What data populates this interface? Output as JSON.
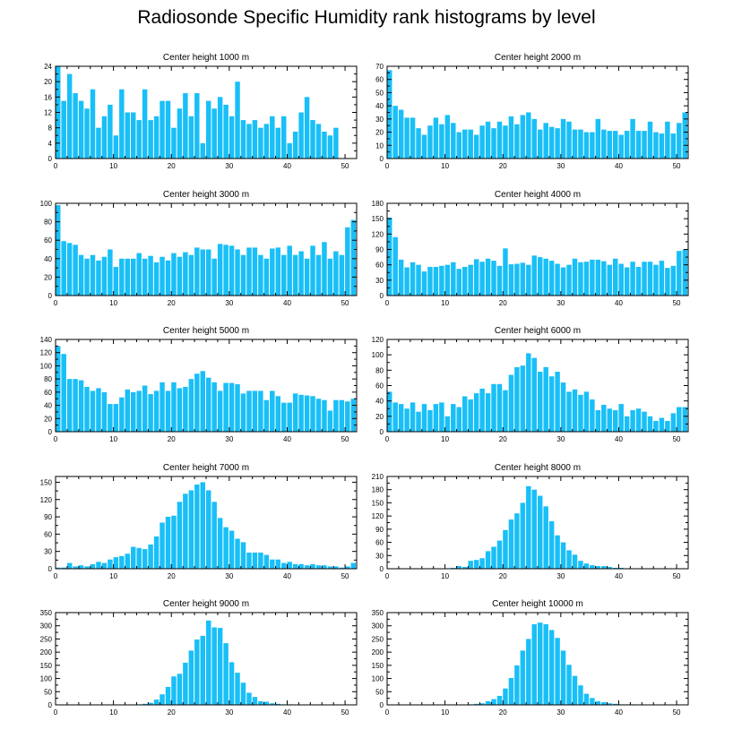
{
  "page_title": "Radiosonde Specific Humidity rank histograms by level",
  "colors": {
    "bar": "#19bff7",
    "bar_edge": "#ffffff",
    "axis": "#000000"
  },
  "chart_data": [
    {
      "type": "bar",
      "title": "Center height 1000 m",
      "x": [
        0,
        1,
        2,
        3,
        4,
        5,
        6,
        7,
        8,
        9,
        10,
        11,
        12,
        13,
        14,
        15,
        16,
        17,
        18,
        19,
        20,
        21,
        22,
        23,
        24,
        25,
        26,
        27,
        28,
        29,
        30,
        31,
        32,
        33,
        34,
        35,
        36,
        37,
        38,
        39,
        40,
        41,
        42,
        43,
        44,
        45,
        46,
        47,
        48,
        49,
        50,
        51
      ],
      "values": [
        24,
        15,
        22,
        17,
        15,
        13,
        18,
        8,
        11,
        14,
        6,
        18,
        12,
        12,
        10,
        18,
        10,
        11,
        15,
        15,
        8,
        13,
        17,
        11,
        17,
        4,
        15,
        13,
        16,
        14,
        11,
        20,
        10,
        9,
        10,
        8,
        9,
        11,
        8,
        11,
        4,
        7,
        12,
        16,
        10,
        9,
        7,
        6,
        8,
        0,
        0,
        0
      ],
      "xlim": [
        0,
        52
      ],
      "ylim": [
        0,
        24
      ],
      "xticks": [
        0,
        10,
        20,
        30,
        40,
        50
      ],
      "yticks": [
        0,
        4,
        8,
        12,
        16,
        20,
        24
      ]
    },
    {
      "type": "bar",
      "title": "Center height 2000 m",
      "x": [
        0,
        1,
        2,
        3,
        4,
        5,
        6,
        7,
        8,
        9,
        10,
        11,
        12,
        13,
        14,
        15,
        16,
        17,
        18,
        19,
        20,
        21,
        22,
        23,
        24,
        25,
        26,
        27,
        28,
        29,
        30,
        31,
        32,
        33,
        34,
        35,
        36,
        37,
        38,
        39,
        40,
        41,
        42,
        43,
        44,
        45,
        46,
        47,
        48,
        49,
        50,
        51
      ],
      "values": [
        67,
        40,
        37,
        31,
        31,
        23,
        18,
        25,
        31,
        26,
        33,
        27,
        20,
        22,
        22,
        18,
        25,
        28,
        23,
        28,
        25,
        32,
        26,
        33,
        35,
        30,
        22,
        27,
        24,
        23,
        30,
        28,
        22,
        22,
        20,
        20,
        30,
        22,
        21,
        21,
        18,
        21,
        30,
        21,
        21,
        28,
        20,
        19,
        28,
        19,
        27,
        35
      ],
      "xlim": [
        0,
        52
      ],
      "ylim": [
        0,
        70
      ],
      "xticks": [
        0,
        10,
        20,
        30,
        40,
        50
      ],
      "yticks": [
        0,
        10,
        20,
        30,
        40,
        50,
        60,
        70
      ]
    },
    {
      "type": "bar",
      "title": "Center height 3000 m",
      "x": [
        0,
        1,
        2,
        3,
        4,
        5,
        6,
        7,
        8,
        9,
        10,
        11,
        12,
        13,
        14,
        15,
        16,
        17,
        18,
        19,
        20,
        21,
        22,
        23,
        24,
        25,
        26,
        27,
        28,
        29,
        30,
        31,
        32,
        33,
        34,
        35,
        36,
        37,
        38,
        39,
        40,
        41,
        42,
        43,
        44,
        45,
        46,
        47,
        48,
        49,
        50,
        51
      ],
      "values": [
        98,
        59,
        57,
        55,
        44,
        40,
        44,
        38,
        42,
        50,
        31,
        40,
        40,
        40,
        46,
        40,
        43,
        36,
        42,
        38,
        46,
        42,
        47,
        44,
        52,
        50,
        50,
        40,
        56,
        55,
        54,
        50,
        44,
        52,
        52,
        44,
        40,
        51,
        52,
        44,
        54,
        44,
        48,
        40,
        54,
        44,
        58,
        40,
        48,
        44,
        74,
        82
      ],
      "xlim": [
        0,
        52
      ],
      "ylim": [
        0,
        100
      ],
      "xticks": [
        0,
        10,
        20,
        30,
        40,
        50
      ],
      "yticks": [
        0,
        20,
        40,
        60,
        80,
        100
      ]
    },
    {
      "type": "bar",
      "title": "Center height 4000 m",
      "x": [
        0,
        1,
        2,
        3,
        4,
        5,
        6,
        7,
        8,
        9,
        10,
        11,
        12,
        13,
        14,
        15,
        16,
        17,
        18,
        19,
        20,
        21,
        22,
        23,
        24,
        25,
        26,
        27,
        28,
        29,
        30,
        31,
        32,
        33,
        34,
        35,
        36,
        37,
        38,
        39,
        40,
        41,
        42,
        43,
        44,
        45,
        46,
        47,
        48,
        49,
        50,
        51
      ],
      "values": [
        152,
        114,
        70,
        55,
        65,
        60,
        47,
        56,
        56,
        58,
        60,
        65,
        52,
        56,
        60,
        71,
        66,
        72,
        68,
        58,
        92,
        61,
        62,
        64,
        60,
        78,
        75,
        72,
        68,
        62,
        55,
        60,
        72,
        65,
        66,
        70,
        70,
        67,
        60,
        72,
        62,
        55,
        66,
        56,
        66,
        66,
        60,
        68,
        54,
        58,
        87,
        90
      ],
      "xlim": [
        0,
        52
      ],
      "ylim": [
        0,
        180
      ],
      "xticks": [
        0,
        10,
        20,
        30,
        40,
        50
      ],
      "yticks": [
        0,
        30,
        60,
        90,
        120,
        150,
        180
      ]
    },
    {
      "type": "bar",
      "title": "Center height 5000 m",
      "x": [
        0,
        1,
        2,
        3,
        4,
        5,
        6,
        7,
        8,
        9,
        10,
        11,
        12,
        13,
        14,
        15,
        16,
        17,
        18,
        19,
        20,
        21,
        22,
        23,
        24,
        25,
        26,
        27,
        28,
        29,
        30,
        31,
        32,
        33,
        34,
        35,
        36,
        37,
        38,
        39,
        40,
        41,
        42,
        43,
        44,
        45,
        46,
        47,
        48,
        49,
        50,
        51
      ],
      "values": [
        130,
        118,
        80,
        80,
        78,
        68,
        62,
        66,
        60,
        42,
        42,
        52,
        64,
        60,
        62,
        70,
        57,
        62,
        75,
        62,
        75,
        66,
        68,
        80,
        88,
        92,
        82,
        75,
        62,
        74,
        74,
        72,
        58,
        62,
        62,
        62,
        48,
        62,
        54,
        44,
        44,
        58,
        56,
        55,
        54,
        50,
        48,
        32,
        48,
        48,
        46,
        50
      ],
      "xlim": [
        0,
        52
      ],
      "ylim": [
        0,
        140
      ],
      "xticks": [
        0,
        10,
        20,
        30,
        40,
        50
      ],
      "yticks": [
        0,
        20,
        40,
        60,
        80,
        100,
        120,
        140
      ]
    },
    {
      "type": "bar",
      "title": "Center height 6000 m",
      "x": [
        0,
        1,
        2,
        3,
        4,
        5,
        6,
        7,
        8,
        9,
        10,
        11,
        12,
        13,
        14,
        15,
        16,
        17,
        18,
        19,
        20,
        21,
        22,
        23,
        24,
        25,
        26,
        27,
        28,
        29,
        30,
        31,
        32,
        33,
        34,
        35,
        36,
        37,
        38,
        39,
        40,
        41,
        42,
        43,
        44,
        45,
        46,
        47,
        48,
        49,
        50,
        51
      ],
      "values": [
        52,
        38,
        36,
        30,
        38,
        26,
        36,
        28,
        36,
        38,
        20,
        36,
        32,
        46,
        42,
        50,
        56,
        50,
        62,
        62,
        54,
        74,
        84,
        86,
        102,
        96,
        78,
        84,
        72,
        78,
        64,
        52,
        55,
        48,
        52,
        42,
        28,
        35,
        30,
        28,
        36,
        20,
        28,
        30,
        26,
        20,
        14,
        18,
        14,
        24,
        32,
        32
      ],
      "xlim": [
        0,
        52
      ],
      "ylim": [
        0,
        120
      ],
      "xticks": [
        0,
        10,
        20,
        30,
        40,
        50
      ],
      "yticks": [
        0,
        20,
        40,
        60,
        80,
        100,
        120
      ]
    },
    {
      "type": "bar",
      "title": "Center height 7000 m",
      "x": [
        0,
        1,
        2,
        3,
        4,
        5,
        6,
        7,
        8,
        9,
        10,
        11,
        12,
        13,
        14,
        15,
        16,
        17,
        18,
        19,
        20,
        21,
        22,
        23,
        24,
        25,
        26,
        27,
        28,
        29,
        30,
        31,
        32,
        33,
        34,
        35,
        36,
        37,
        38,
        39,
        40,
        41,
        42,
        43,
        44,
        45,
        46,
        47,
        48,
        49,
        50,
        51
      ],
      "values": [
        2,
        2,
        10,
        4,
        6,
        4,
        8,
        12,
        10,
        16,
        20,
        22,
        26,
        38,
        36,
        34,
        42,
        56,
        80,
        90,
        92,
        116,
        130,
        136,
        146,
        150,
        136,
        116,
        88,
        72,
        66,
        52,
        46,
        28,
        28,
        28,
        24,
        16,
        16,
        10,
        12,
        8,
        8,
        6,
        8,
        6,
        6,
        4,
        4,
        2,
        4,
        10
      ],
      "xlim": [
        0,
        52
      ],
      "ylim": [
        0,
        160
      ],
      "xticks": [
        0,
        10,
        20,
        30,
        40,
        50
      ],
      "yticks": [
        0,
        30,
        60,
        90,
        120,
        150
      ]
    },
    {
      "type": "bar",
      "title": "Center height 8000 m",
      "x": [
        0,
        1,
        2,
        3,
        4,
        5,
        6,
        7,
        8,
        9,
        10,
        11,
        12,
        13,
        14,
        15,
        16,
        17,
        18,
        19,
        20,
        21,
        22,
        23,
        24,
        25,
        26,
        27,
        28,
        29,
        30,
        31,
        32,
        33,
        34,
        35,
        36,
        37,
        38,
        39,
        40,
        41,
        42,
        43,
        44,
        45,
        46,
        47,
        48,
        49,
        50,
        51
      ],
      "values": [
        0,
        0,
        0,
        0,
        0,
        0,
        0,
        0,
        0,
        0,
        0,
        2,
        6,
        4,
        18,
        20,
        24,
        40,
        50,
        64,
        88,
        112,
        126,
        150,
        188,
        180,
        166,
        142,
        108,
        76,
        60,
        42,
        32,
        18,
        12,
        8,
        6,
        6,
        4,
        2,
        2,
        1,
        0,
        0,
        0,
        0,
        0,
        0,
        0,
        0,
        0,
        0
      ],
      "xlim": [
        0,
        52
      ],
      "ylim": [
        0,
        210
      ],
      "xticks": [
        0,
        10,
        20,
        30,
        40,
        50
      ],
      "yticks": [
        0,
        30,
        60,
        90,
        120,
        150,
        180,
        210
      ]
    },
    {
      "type": "bar",
      "title": "Center height 9000 m",
      "x": [
        0,
        1,
        2,
        3,
        4,
        5,
        6,
        7,
        8,
        9,
        10,
        11,
        12,
        13,
        14,
        15,
        16,
        17,
        18,
        19,
        20,
        21,
        22,
        23,
        24,
        25,
        26,
        27,
        28,
        29,
        30,
        31,
        32,
        33,
        34,
        35,
        36,
        37,
        38,
        39,
        40,
        41,
        42,
        43,
        44,
        45,
        46,
        47,
        48,
        49,
        50,
        51
      ],
      "values": [
        0,
        0,
        0,
        0,
        0,
        0,
        0,
        0,
        0,
        0,
        0,
        0,
        0,
        0,
        2,
        4,
        8,
        20,
        40,
        68,
        108,
        118,
        160,
        206,
        248,
        262,
        320,
        294,
        292,
        234,
        162,
        122,
        84,
        46,
        30,
        14,
        12,
        6,
        4,
        2,
        2,
        1,
        0,
        0,
        0,
        0,
        0,
        0,
        0,
        0,
        0,
        0
      ],
      "xlim": [
        0,
        52
      ],
      "ylim": [
        0,
        350
      ],
      "xticks": [
        0,
        10,
        20,
        30,
        40,
        50
      ],
      "yticks": [
        0,
        50,
        100,
        150,
        200,
        250,
        300,
        350
      ]
    },
    {
      "type": "bar",
      "title": "Center height 10000 m",
      "x": [
        0,
        1,
        2,
        3,
        4,
        5,
        6,
        7,
        8,
        9,
        10,
        11,
        12,
        13,
        14,
        15,
        16,
        17,
        18,
        19,
        20,
        21,
        22,
        23,
        24,
        25,
        26,
        27,
        28,
        29,
        30,
        31,
        32,
        33,
        34,
        35,
        36,
        37,
        38,
        39,
        40,
        41,
        42,
        43,
        44,
        45,
        46,
        47,
        48,
        49,
        50,
        51
      ],
      "values": [
        0,
        0,
        0,
        0,
        0,
        0,
        0,
        0,
        0,
        0,
        0,
        0,
        0,
        0,
        2,
        4,
        6,
        14,
        22,
        34,
        62,
        102,
        150,
        206,
        250,
        306,
        312,
        306,
        284,
        254,
        206,
        152,
        110,
        74,
        42,
        26,
        14,
        10,
        6,
        4,
        2,
        2,
        2,
        1,
        1,
        0,
        0,
        0,
        0,
        0,
        0,
        0
      ],
      "xlim": [
        0,
        52
      ],
      "ylim": [
        0,
        350
      ],
      "xticks": [
        0,
        10,
        20,
        30,
        40,
        50
      ],
      "yticks": [
        0,
        50,
        100,
        150,
        200,
        250,
        300,
        350
      ]
    }
  ]
}
